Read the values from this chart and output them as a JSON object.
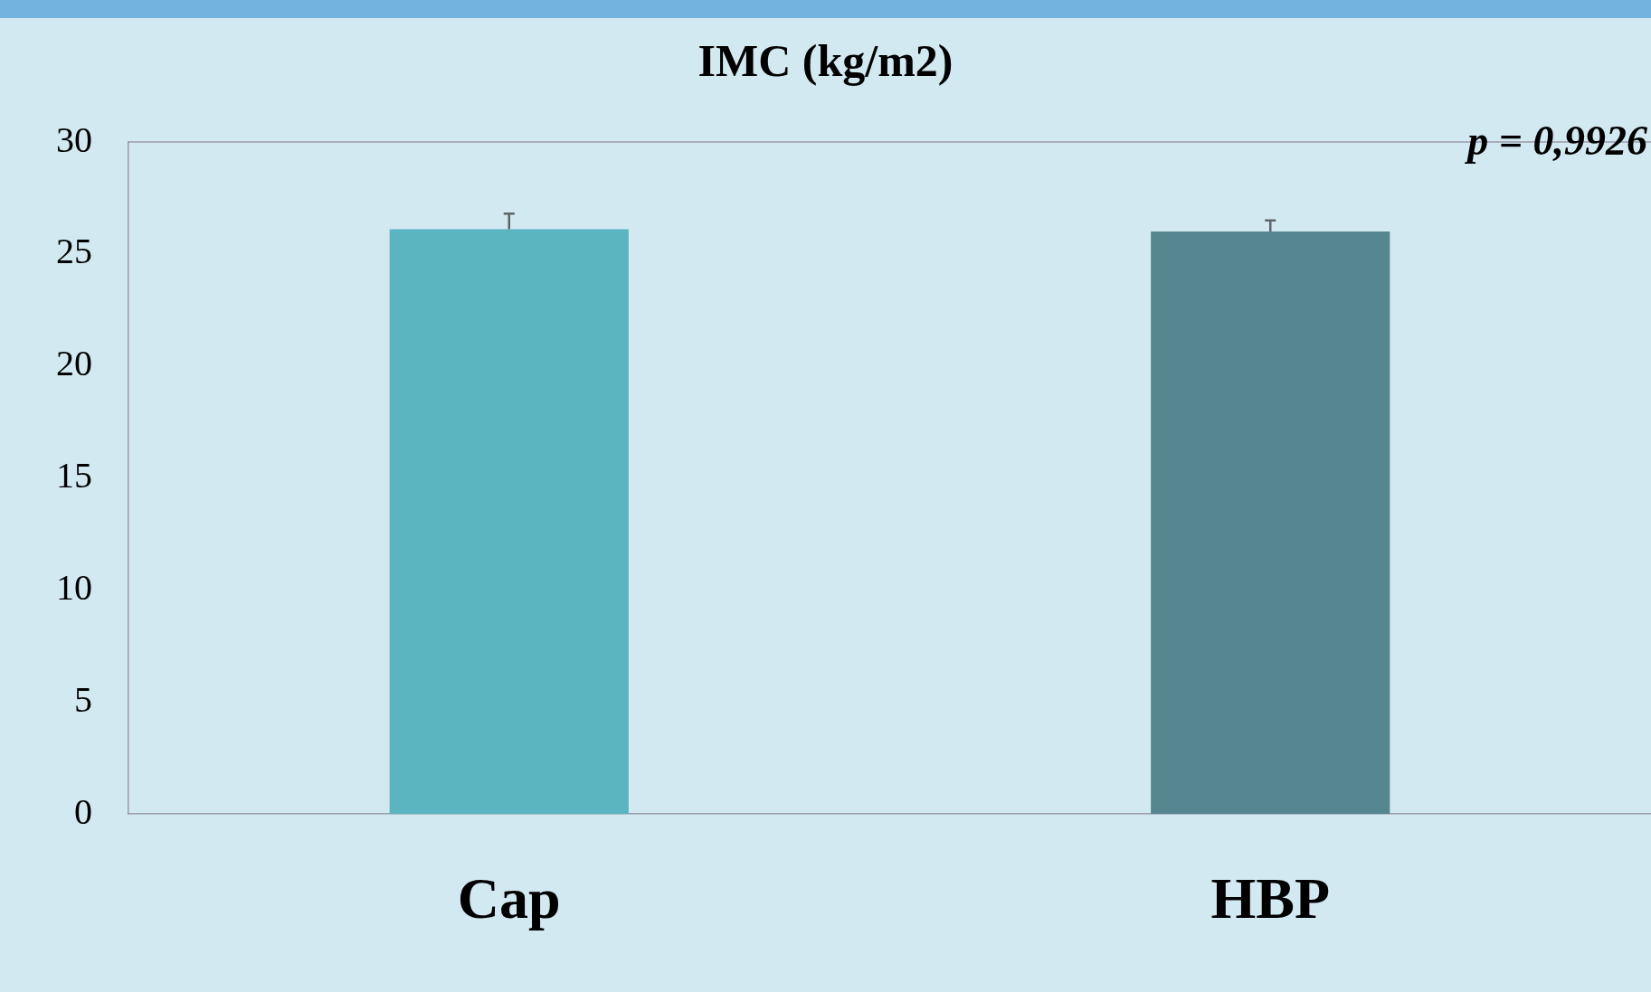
{
  "chart_data": {
    "type": "bar",
    "title": "IMC (kg/m2)",
    "categories": [
      "Cap",
      "HBP"
    ],
    "values": [
      26.1,
      26.0
    ],
    "colors": [
      "#5ab5c1",
      "#568791"
    ],
    "errors": [
      [
        26.1,
        26.8
      ],
      [
        26.0,
        26.5
      ]
    ],
    "ylim": [
      0,
      30
    ],
    "yticks": [
      0,
      5,
      10,
      15,
      20,
      25,
      30
    ],
    "grid": false,
    "legend": false,
    "annotations": [
      "p = 0,9926"
    ]
  }
}
